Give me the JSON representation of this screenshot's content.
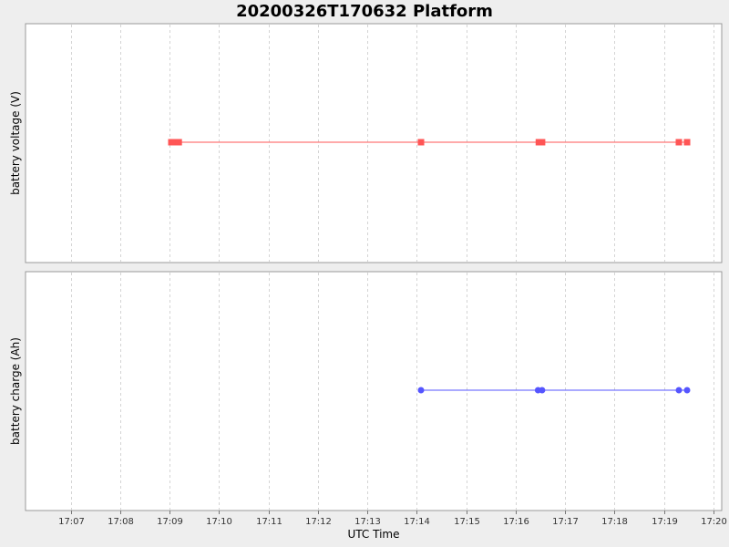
{
  "title": "20200326T170632 Platform",
  "chart_data": {
    "type": "line",
    "xlabel": "UTC Time",
    "x_ticks": [
      "17:07",
      "17:08",
      "17:09",
      "17:10",
      "17:11",
      "17:12",
      "17:13",
      "17:14",
      "17:15",
      "17:16",
      "17:17",
      "17:18",
      "17:19",
      "17:20"
    ],
    "xlim": [
      "17:06:05",
      "17:20:10"
    ],
    "grid": true,
    "panels": [
      {
        "ylabel": "battery voltage (V)",
        "series": [
          {
            "color": "#ff5555",
            "marker": "square",
            "x": [
              "17:09:02",
              "17:09:05",
              "17:09:08",
              "17:09:11",
              "17:14:05",
              "17:16:28",
              "17:16:32",
              "17:19:18",
              "17:19:28"
            ],
            "y": [
              1,
              1,
              1,
              1,
              1,
              1,
              1,
              1,
              1
            ]
          }
        ]
      },
      {
        "ylabel": "battery charge (Ah)",
        "series": [
          {
            "color": "#5555ff",
            "marker": "circle",
            "x": [
              "17:14:05",
              "17:16:27",
              "17:16:32",
              "17:19:18",
              "17:19:28"
            ],
            "y": [
              1,
              1,
              1,
              1,
              1
            ]
          }
        ]
      }
    ]
  }
}
